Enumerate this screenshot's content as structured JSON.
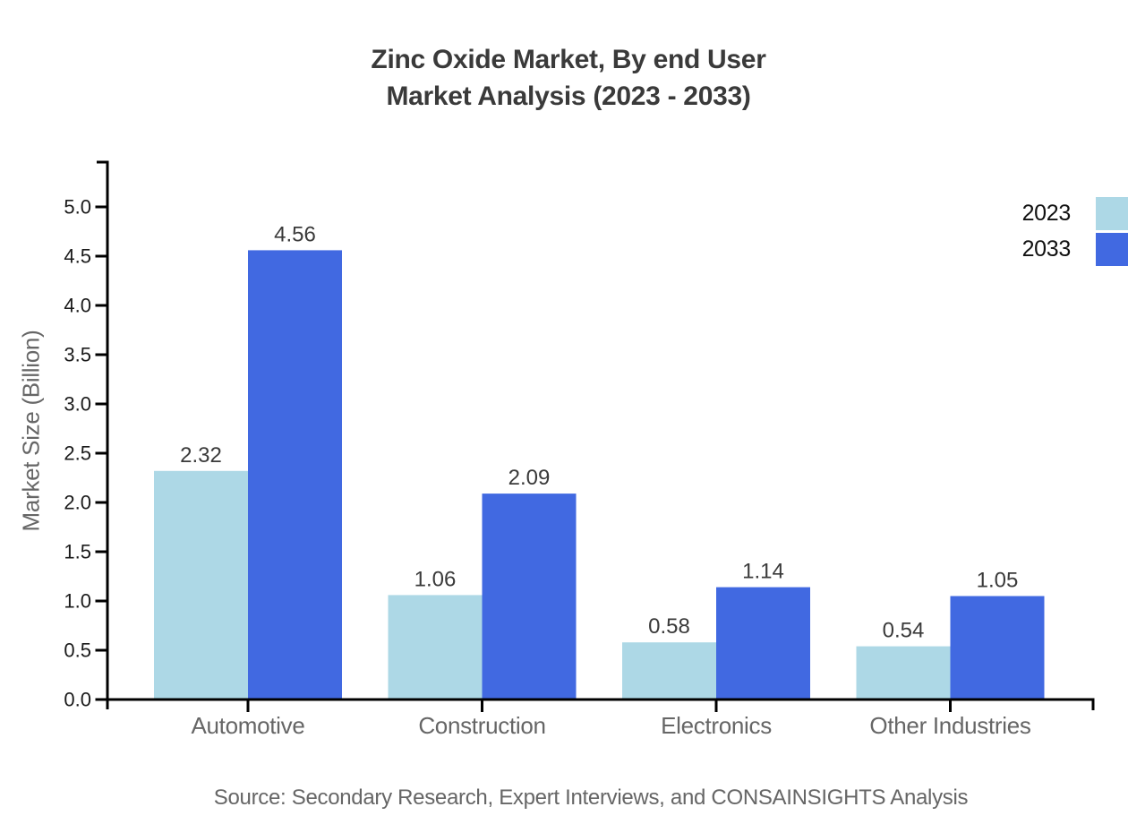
{
  "title": {
    "line1": "Zinc Oxide Market, By end User",
    "line2": "Market Analysis (2023 - 2033)"
  },
  "source_note": "Source: Secondary Research, Expert Interviews, and CONSAINSIGHTS Analysis",
  "chart_data": {
    "type": "bar",
    "title": "Zinc Oxide Market, By end User Market Analysis (2023 - 2033)",
    "categories": [
      "Automotive",
      "Construction",
      "Electronics",
      "Other Industries"
    ],
    "series": [
      {
        "name": "2023",
        "color": "#ADD8E6",
        "values": [
          2.32,
          1.06,
          0.58,
          0.54
        ]
      },
      {
        "name": "2033",
        "color": "#4169E1",
        "values": [
          4.56,
          2.09,
          1.14,
          1.05
        ]
      }
    ],
    "xlabel": "",
    "ylabel": "Market Size (Billion)",
    "ylim": [
      0,
      5.5
    ],
    "yticks": [
      0.0,
      0.5,
      1.0,
      1.5,
      2.0,
      2.5,
      3.0,
      3.5,
      4.0,
      4.5,
      5.0
    ],
    "grid": false,
    "legend_position": "top-right",
    "value_labels": true
  },
  "colors": {
    "background": "#ffffff",
    "axis": "#000000",
    "title_text": "#3a3a3a",
    "tick_label": "#1a1a1a",
    "value_label": "#3a3a3a",
    "category_label": "#666666",
    "muted_text": "#666666"
  }
}
